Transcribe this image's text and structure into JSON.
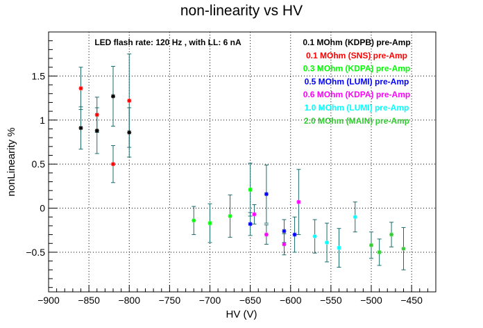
{
  "chart_data": {
    "type": "scatter",
    "title": "non-linearity vs HV",
    "xlabel": "HV (V)",
    "ylabel": "nonLinearity %",
    "xlim": [
      -900,
      -420
    ],
    "ylim": [
      -0.95,
      2.0
    ],
    "xticks": [
      -900,
      -850,
      -800,
      -750,
      -700,
      -650,
      -600,
      -550,
      -500,
      -450
    ],
    "xtick_labels": [
      "−900",
      "−850",
      "−800",
      "−750",
      "−700",
      "−650",
      "−600",
      "−550",
      "−500",
      "−450"
    ],
    "yticks": [
      -0.5,
      0,
      0.5,
      1,
      1.5
    ],
    "ytick_labels": [
      "−0.5",
      "0",
      "0.5",
      "1",
      "1.5"
    ],
    "grid": true,
    "annotation": "LED flash rate: 120 Hz , with LL: 6 nA",
    "legend_position": "top-right",
    "errorbar_color": "#1a6b6b",
    "series": [
      {
        "name": "0.1 MOhm (KDPB) pre-Amp",
        "color": "#000000",
        "points": [
          {
            "x": -860,
            "y": 0.91,
            "err": 0.24
          },
          {
            "x": -840,
            "y": 0.88,
            "err": 0.26
          },
          {
            "x": -820,
            "y": 1.27,
            "err": 0.34
          },
          {
            "x": -800,
            "y": 0.86,
            "err": 0.28
          }
        ]
      },
      {
        "name": "0.1 MOhm (SNS) pre-Amp",
        "color": "#ff0000",
        "points": [
          {
            "x": -860,
            "y": 1.36,
            "err": 0.24
          },
          {
            "x": -840,
            "y": 1.06,
            "err": 0.2
          },
          {
            "x": -820,
            "y": 0.5,
            "err": 0.21
          },
          {
            "x": -800,
            "y": 1.22,
            "err": 0.53
          }
        ]
      },
      {
        "name": "0.3 MOhm (KDPA) pre-Amp",
        "color": "#00ff00",
        "points": [
          {
            "x": -720,
            "y": -0.14,
            "err": 0.16
          },
          {
            "x": -700,
            "y": -0.17,
            "err": 0.22
          },
          {
            "x": -675,
            "y": -0.09,
            "err": 0.24
          },
          {
            "x": -650,
            "y": 0.21,
            "err": 0.3
          }
        ]
      },
      {
        "name": "0.5 MOhm (LUMI) pre-Amp",
        "color": "#0000ff",
        "points": [
          {
            "x": -650,
            "y": -0.18,
            "err": 0.13
          },
          {
            "x": -630,
            "y": 0.16,
            "err": 0.33
          },
          {
            "x": -608,
            "y": -0.26,
            "err": 0.13
          },
          {
            "x": -595,
            "y": -0.3,
            "err": 0.2
          }
        ]
      },
      {
        "name": "0.6 MOhm (KDPA) pre-Amp",
        "color": "#ff00ff",
        "points": [
          {
            "x": -645,
            "y": -0.07,
            "err": 0.11
          },
          {
            "x": -630,
            "y": -0.3,
            "err": 0.11
          },
          {
            "x": -608,
            "y": -0.41,
            "err": 0.12
          },
          {
            "x": -590,
            "y": 0.07,
            "err": 0.37
          }
        ]
      },
      {
        "name": "1.0 MOhm (LUMI) pre-Amp",
        "color": "#00ffff",
        "points": [
          {
            "x": -570,
            "y": -0.32,
            "err": 0.19
          },
          {
            "x": -555,
            "y": -0.39,
            "err": 0.22
          },
          {
            "x": -540,
            "y": -0.45,
            "err": 0.22
          },
          {
            "x": -520,
            "y": -0.1,
            "err": 0.17
          }
        ]
      },
      {
        "name": "2.0 MOhm (MAIN) pre-Amp",
        "color": "#33cc33",
        "points": [
          {
            "x": -500,
            "y": -0.42,
            "err": 0.15
          },
          {
            "x": -490,
            "y": -0.5,
            "err": 0.15
          },
          {
            "x": -475,
            "y": -0.3,
            "err": 0.14
          },
          {
            "x": -460,
            "y": -0.46,
            "err": 0.24
          }
        ]
      }
    ]
  }
}
